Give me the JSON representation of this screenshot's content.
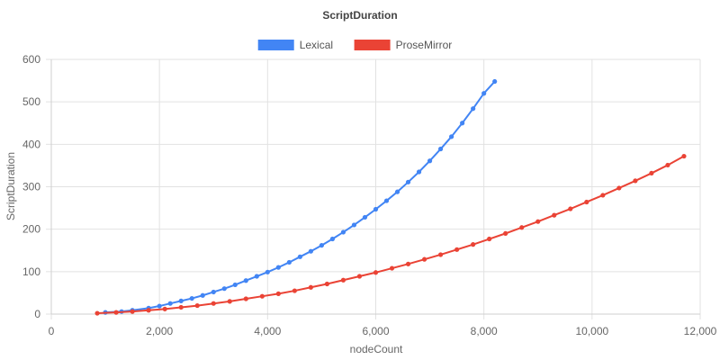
{
  "chart_data": {
    "type": "scatter",
    "title": "ScriptDuration",
    "xlabel": "nodeCount",
    "ylabel": "ScriptDuration",
    "xlim": [
      0,
      12000
    ],
    "ylim": [
      0,
      600
    ],
    "x_ticks": [
      0,
      2000,
      4000,
      6000,
      8000,
      10000,
      12000
    ],
    "x_tick_labels": [
      "0",
      "2,000",
      "4,000",
      "6,000",
      "8,000",
      "10,000",
      "12,000"
    ],
    "y_ticks": [
      0,
      100,
      200,
      300,
      400,
      500,
      600
    ],
    "y_tick_labels": [
      "0",
      "100",
      "200",
      "300",
      "400",
      "500",
      "600"
    ],
    "grid": true,
    "legend_position": "top",
    "series": [
      {
        "name": "Lexical",
        "color": "#4285f4",
        "points": [
          [
            1000,
            4
          ],
          [
            1300,
            6
          ],
          [
            1500,
            9
          ],
          [
            1800,
            14
          ],
          [
            2000,
            19
          ],
          [
            2200,
            25
          ],
          [
            2400,
            31
          ],
          [
            2600,
            37
          ],
          [
            2800,
            44
          ],
          [
            3000,
            52
          ],
          [
            3200,
            60
          ],
          [
            3400,
            69
          ],
          [
            3600,
            79
          ],
          [
            3800,
            89
          ],
          [
            4000,
            99
          ],
          [
            4200,
            110
          ],
          [
            4400,
            122
          ],
          [
            4600,
            135
          ],
          [
            4800,
            148
          ],
          [
            5000,
            162
          ],
          [
            5200,
            177
          ],
          [
            5400,
            193
          ],
          [
            5600,
            210
          ],
          [
            5800,
            228
          ],
          [
            6000,
            247
          ],
          [
            6200,
            267
          ],
          [
            6400,
            288
          ],
          [
            6600,
            311
          ],
          [
            6800,
            335
          ],
          [
            7000,
            361
          ],
          [
            7200,
            389
          ],
          [
            7400,
            418
          ],
          [
            7600,
            450
          ],
          [
            7800,
            484
          ],
          [
            8000,
            520
          ],
          [
            8200,
            548
          ]
        ]
      },
      {
        "name": "ProseMirror",
        "color": "#ea4335",
        "points": [
          [
            850,
            2
          ],
          [
            1200,
            4
          ],
          [
            1500,
            6
          ],
          [
            1800,
            9
          ],
          [
            2100,
            12
          ],
          [
            2400,
            16
          ],
          [
            2700,
            20
          ],
          [
            3000,
            25
          ],
          [
            3300,
            30
          ],
          [
            3600,
            36
          ],
          [
            3900,
            42
          ],
          [
            4200,
            48
          ],
          [
            4500,
            55
          ],
          [
            4800,
            63
          ],
          [
            5100,
            71
          ],
          [
            5400,
            80
          ],
          [
            5700,
            89
          ],
          [
            6000,
            98
          ],
          [
            6300,
            108
          ],
          [
            6600,
            118
          ],
          [
            6900,
            129
          ],
          [
            7200,
            140
          ],
          [
            7500,
            152
          ],
          [
            7800,
            164
          ],
          [
            8100,
            177
          ],
          [
            8400,
            190
          ],
          [
            8700,
            204
          ],
          [
            9000,
            218
          ],
          [
            9300,
            233
          ],
          [
            9600,
            248
          ],
          [
            9900,
            264
          ],
          [
            10200,
            280
          ],
          [
            10500,
            297
          ],
          [
            10800,
            314
          ],
          [
            11100,
            332
          ],
          [
            11400,
            351
          ],
          [
            11700,
            372
          ]
        ]
      }
    ]
  }
}
